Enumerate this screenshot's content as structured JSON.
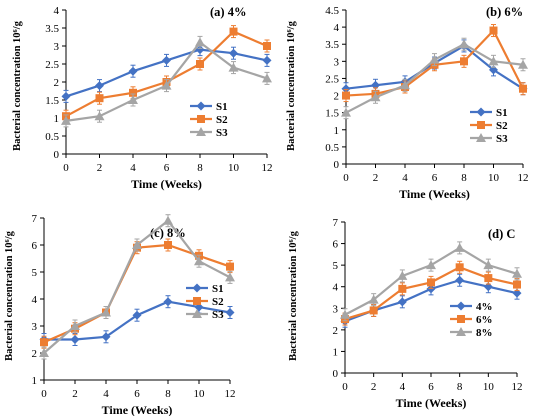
{
  "chart_data": [
    {
      "type": "line",
      "title": "(a) 4%",
      "xlabel": "Time (Weeks)",
      "ylabel": "Bacterial concentration 10⁶/g",
      "x": [
        0,
        2,
        4,
        6,
        8,
        10,
        12
      ],
      "xticks": [
        "0",
        "2",
        "4",
        "6",
        "8",
        "10",
        "12"
      ],
      "ylim": [
        0,
        4
      ],
      "yticks": [
        "0",
        "0.5",
        "1",
        "1.5",
        "2",
        "2.5",
        "3",
        "3.5",
        "4"
      ],
      "legend_position": "bottom-right",
      "series": [
        {
          "name": "S1",
          "color": "#4472c4",
          "marker": "diamond",
          "values": [
            1.6,
            1.9,
            2.3,
            2.6,
            2.9,
            2.8,
            2.6
          ]
        },
        {
          "name": "S2",
          "color": "#ed7d31",
          "marker": "square",
          "values": [
            1.05,
            1.55,
            1.7,
            2.0,
            2.5,
            3.4,
            3.0
          ]
        },
        {
          "name": "S3",
          "color": "#a5a5a5",
          "marker": "triangle",
          "values": [
            0.92,
            1.05,
            1.5,
            1.9,
            3.1,
            2.4,
            2.1
          ]
        }
      ]
    },
    {
      "type": "line",
      "title": "(b) 6%",
      "xlabel": "Time (Weeks)",
      "ylabel": "Bacterial concentration 10⁶/g",
      "x": [
        0,
        2,
        4,
        6,
        8,
        10,
        12
      ],
      "xticks": [
        "0",
        "2",
        "4",
        "6",
        "8",
        "10",
        "12"
      ],
      "ylim": [
        0,
        4.5
      ],
      "yticks": [
        "0",
        "0.5",
        "1",
        "1.5",
        "2",
        "2.5",
        "3",
        "3.5",
        "4",
        "4.5"
      ],
      "legend_position": "bottom-right",
      "series": [
        {
          "name": "S1",
          "color": "#4472c4",
          "marker": "diamond",
          "values": [
            2.2,
            2.3,
            2.4,
            2.95,
            3.45,
            2.75,
            2.2
          ]
        },
        {
          "name": "S2",
          "color": "#ed7d31",
          "marker": "square",
          "values": [
            2.0,
            2.05,
            2.25,
            2.9,
            3.0,
            3.9,
            2.2
          ]
        },
        {
          "name": "S3",
          "color": "#a5a5a5",
          "marker": "triangle",
          "values": [
            1.5,
            1.95,
            2.3,
            3.05,
            3.5,
            3.0,
            2.9
          ]
        }
      ]
    },
    {
      "type": "line",
      "title": "(c) 8%",
      "xlabel": "Time (Weeks)",
      "ylabel": "Bacterial concentration 10⁶/g",
      "x": [
        0,
        2,
        4,
        6,
        8,
        10,
        12
      ],
      "xticks": [
        "0",
        "2",
        "4",
        "6",
        "8",
        "10",
        "12"
      ],
      "ylim": [
        1,
        7
      ],
      "yticks": [
        "1",
        "2",
        "3",
        "4",
        "5",
        "6",
        "7"
      ],
      "legend_position": "bottom-right",
      "series": [
        {
          "name": "S1",
          "color": "#4472c4",
          "marker": "diamond",
          "values": [
            2.5,
            2.5,
            2.6,
            3.4,
            3.9,
            3.7,
            3.5
          ]
        },
        {
          "name": "S2",
          "color": "#ed7d31",
          "marker": "square",
          "values": [
            2.4,
            2.9,
            3.5,
            5.9,
            6.0,
            5.6,
            5.2
          ]
        },
        {
          "name": "S3",
          "color": "#a5a5a5",
          "marker": "triangle",
          "values": [
            2.0,
            3.0,
            3.5,
            6.0,
            6.9,
            5.4,
            4.8
          ]
        }
      ]
    },
    {
      "type": "line",
      "title": "(d) C",
      "xlabel": "Time (Weeks)",
      "ylabel": "Bacterial concentration 10⁶/g",
      "x": [
        0,
        2,
        4,
        6,
        8,
        10,
        12
      ],
      "xticks": [
        "0",
        "2",
        "4",
        "6",
        "8",
        "10",
        "12"
      ],
      "ylim": [
        0,
        7
      ],
      "yticks": [
        "0",
        "1",
        "2",
        "3",
        "4",
        "5",
        "6",
        "7"
      ],
      "legend_position": "bottom-right",
      "series": [
        {
          "name": "4%",
          "color": "#4472c4",
          "marker": "diamond",
          "values": [
            2.4,
            2.9,
            3.3,
            3.9,
            4.3,
            4.0,
            3.7
          ]
        },
        {
          "name": "6%",
          "color": "#ed7d31",
          "marker": "square",
          "values": [
            2.5,
            2.9,
            3.9,
            4.2,
            4.9,
            4.4,
            4.1
          ]
        },
        {
          "name": "8%",
          "color": "#a5a5a5",
          "marker": "triangle",
          "values": [
            2.7,
            3.4,
            4.5,
            5.0,
            5.8,
            5.0,
            4.6
          ]
        }
      ]
    }
  ]
}
